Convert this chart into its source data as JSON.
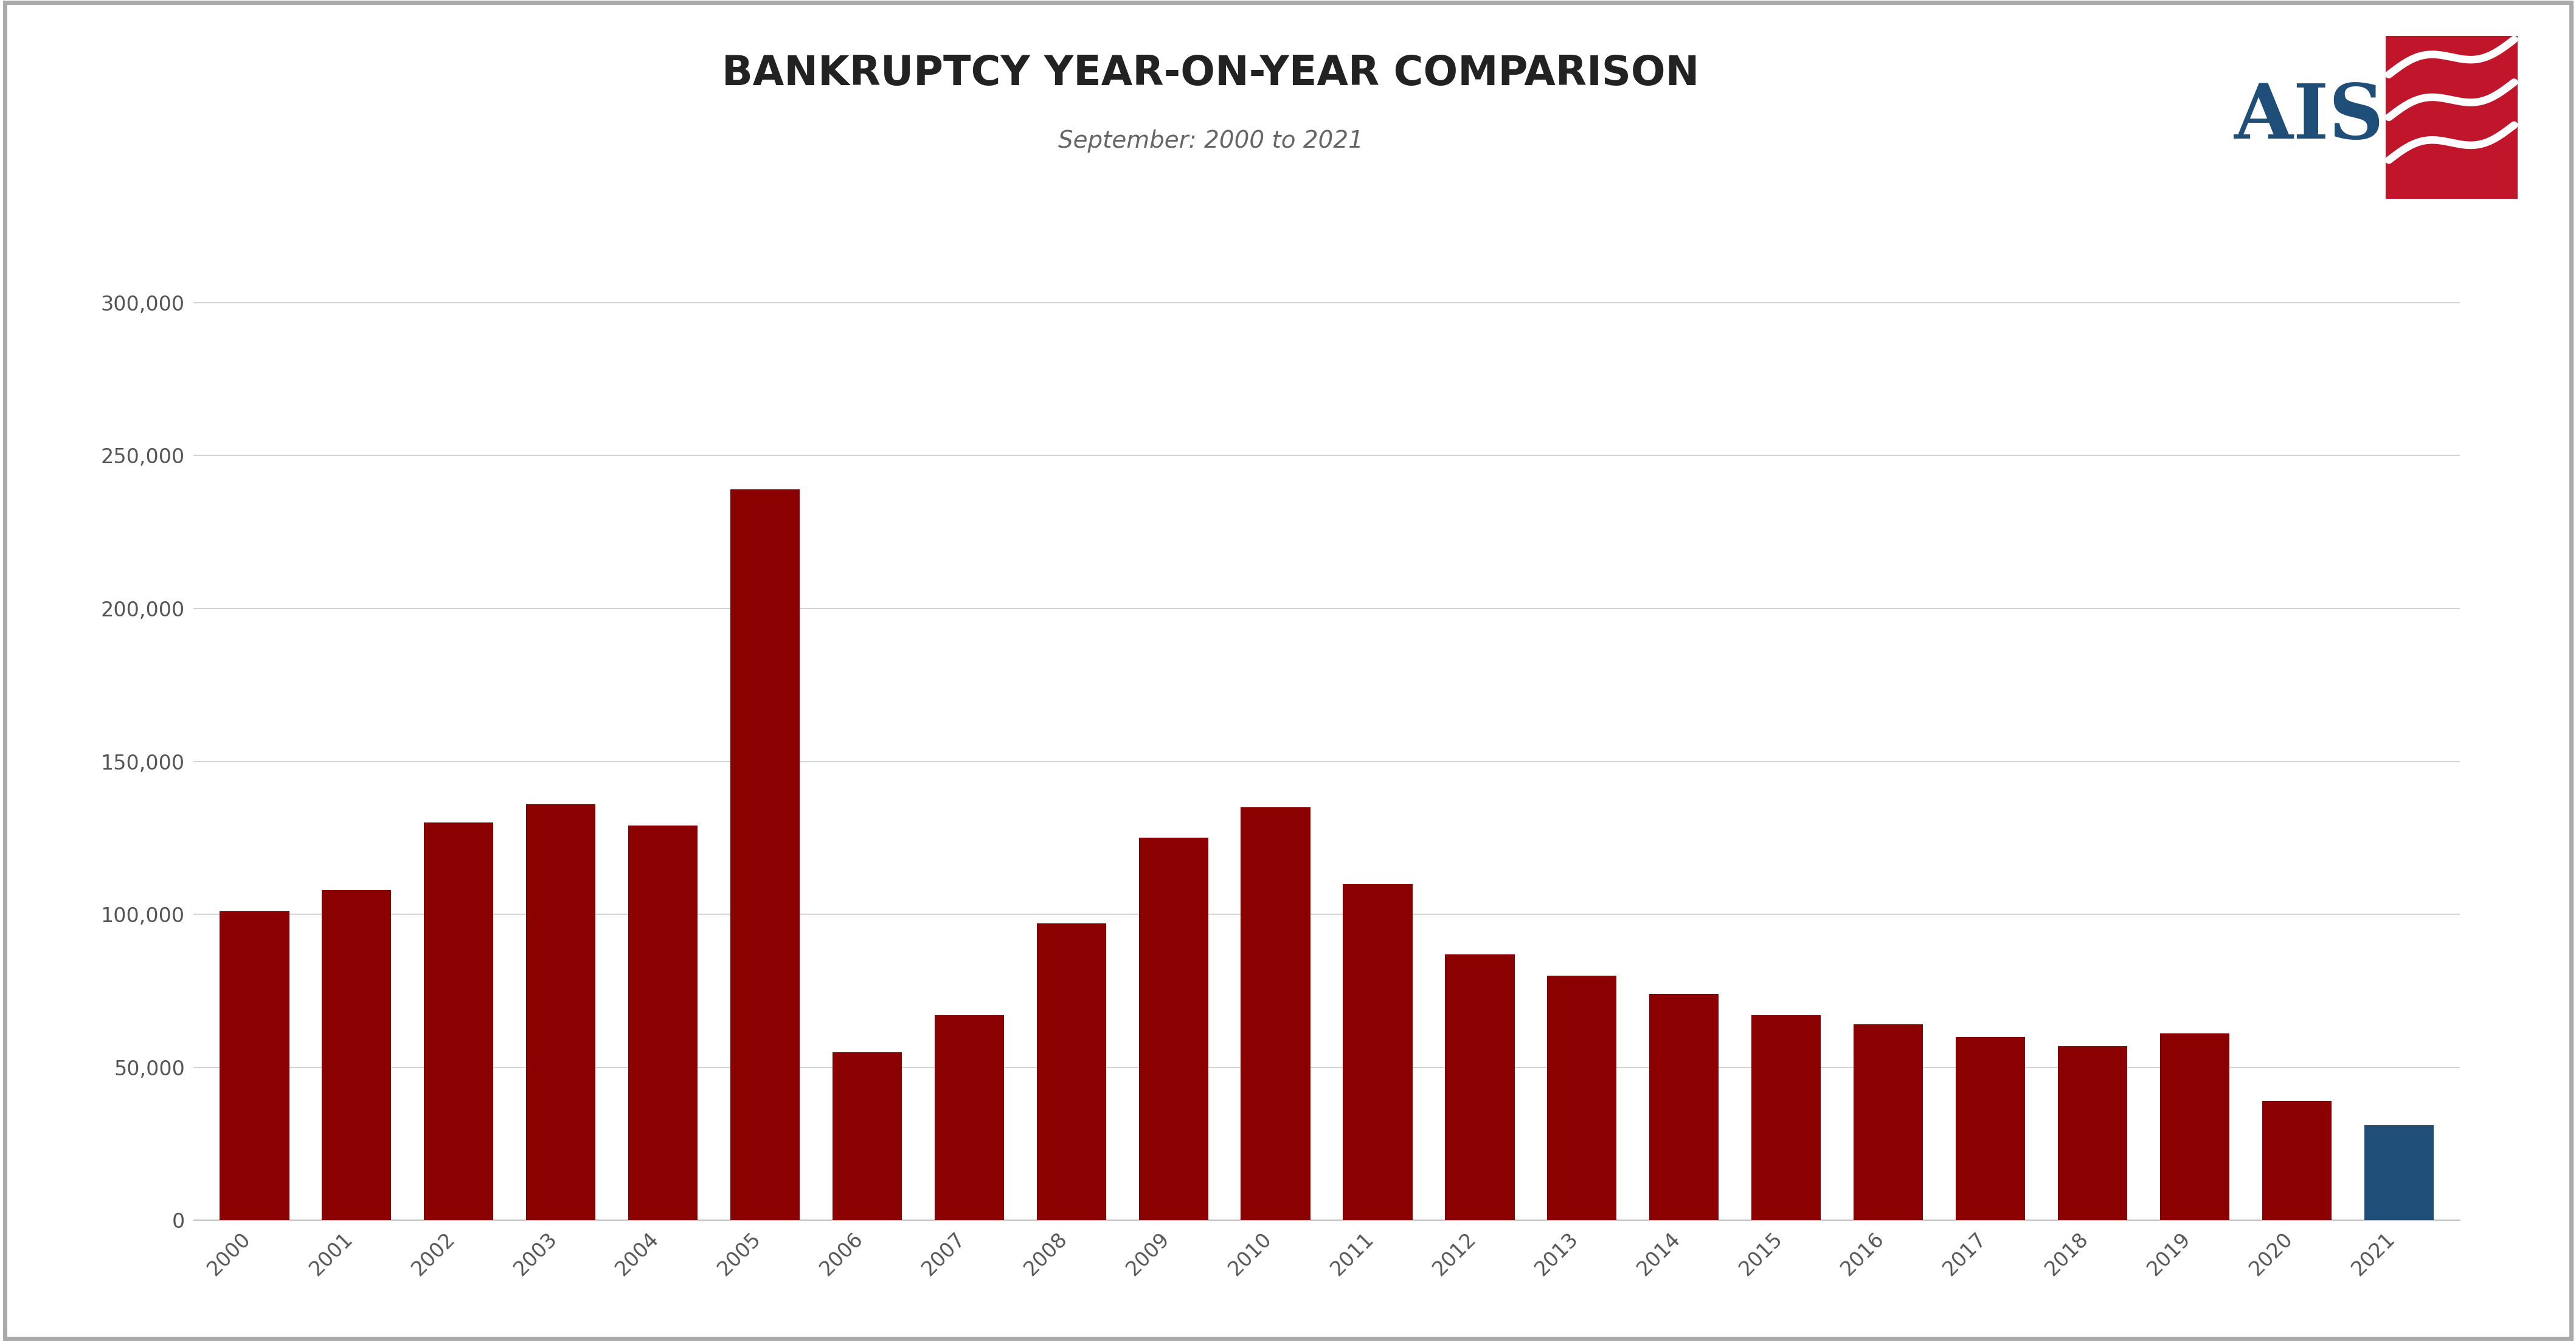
{
  "title": "BANKRUPTCY YEAR-ON-YEAR COMPARISON",
  "subtitle": "September: 2000 to 2021",
  "years": [
    2000,
    2001,
    2002,
    2003,
    2004,
    2005,
    2006,
    2007,
    2008,
    2009,
    2010,
    2011,
    2012,
    2013,
    2014,
    2015,
    2016,
    2017,
    2018,
    2019,
    2020,
    2021
  ],
  "values": [
    101000,
    108000,
    130000,
    136000,
    129000,
    239000,
    55000,
    67000,
    97000,
    125000,
    135000,
    110000,
    87000,
    80000,
    74000,
    67000,
    64000,
    60000,
    57000,
    61000,
    39000,
    31000
  ],
  "bar_colors": [
    "#8B0000",
    "#8B0000",
    "#8B0000",
    "#8B0000",
    "#8B0000",
    "#8B0000",
    "#8B0000",
    "#8B0000",
    "#8B0000",
    "#8B0000",
    "#8B0000",
    "#8B0000",
    "#8B0000",
    "#8B0000",
    "#8B0000",
    "#8B0000",
    "#8B0000",
    "#8B0000",
    "#8B0000",
    "#8B0000",
    "#8B0000",
    "#1F4E79"
  ],
  "ylim": [
    0,
    320000
  ],
  "yticks": [
    0,
    50000,
    100000,
    150000,
    200000,
    250000,
    300000
  ],
  "background_color": "#ffffff",
  "border_color": "#aaaaaa",
  "title_fontsize": 48,
  "subtitle_fontsize": 28,
  "tick_fontsize": 24,
  "ais_blue": "#1F4E79",
  "ais_red": "#C0152A",
  "grid_color": "#cccccc"
}
